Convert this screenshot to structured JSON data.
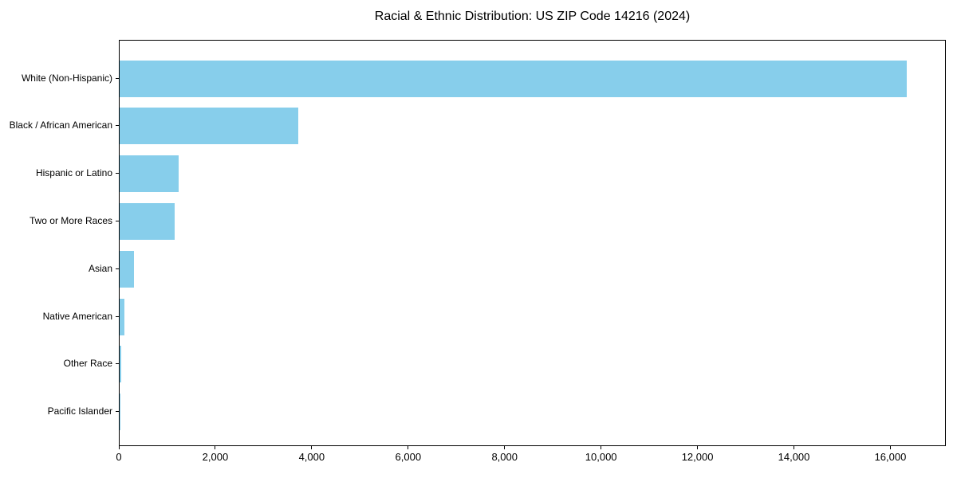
{
  "chart_data": {
    "type": "bar",
    "orientation": "horizontal",
    "title": "Racial & Ethnic Distribution: US ZIP Code 14216 (2024)",
    "categories": [
      "White (Non-Hispanic)",
      "Black / African American",
      "Hispanic or Latino",
      "Two or More Races",
      "Asian",
      "Native American",
      "Other Race",
      "Pacific Islander"
    ],
    "values": [
      16320,
      3700,
      1220,
      1140,
      300,
      100,
      30,
      5
    ],
    "xlabel": "",
    "ylabel": "",
    "xlim": [
      0,
      17150
    ],
    "x_ticks": [
      0,
      2000,
      4000,
      6000,
      8000,
      10000,
      12000,
      14000,
      16000
    ],
    "x_tick_labels": [
      "0",
      "2,000",
      "4,000",
      "6,000",
      "8,000",
      "10,000",
      "12,000",
      "14,000",
      "16,000"
    ],
    "bar_color": "#87CEEB",
    "axis_color": "#000000",
    "background_color": "#ffffff",
    "grid": false,
    "legend": null
  }
}
